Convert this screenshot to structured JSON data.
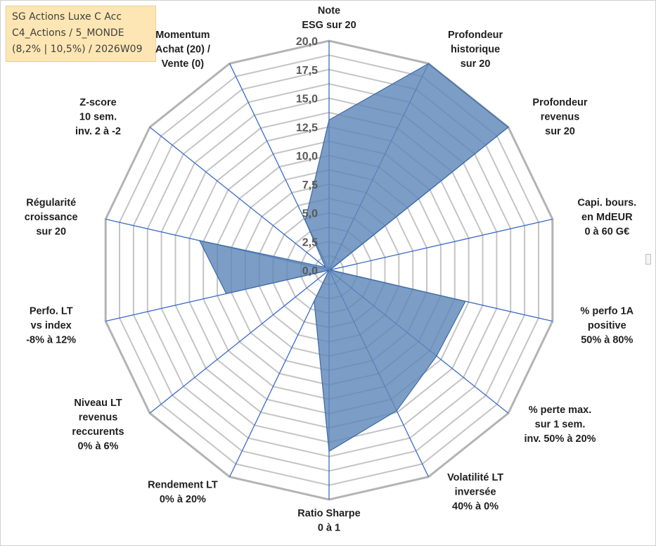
{
  "title_box": {
    "line1": "SG Actions Luxe C Acc",
    "line2": "C4_Actions / 5_MONDE",
    "line3": "(8,2% | 10,5%) / 2026W09"
  },
  "chart_data": {
    "type": "radar",
    "rmin": 0,
    "rmax": 20,
    "ticks": [
      "0,0",
      "2,5",
      "5,0",
      "7,5",
      "10,0",
      "12,5",
      "15,0",
      "17,5",
      "20,0"
    ],
    "tick_values": [
      0,
      2.5,
      5,
      7.5,
      10,
      12.5,
      15,
      17.5,
      20
    ],
    "grid_steps": 16,
    "axes": [
      {
        "label": [
          "Note",
          "ESG sur 20"
        ]
      },
      {
        "label": [
          "Profondeur",
          "historique",
          "sur 20"
        ]
      },
      {
        "label": [
          "Profondeur",
          "revenus",
          "sur 20"
        ]
      },
      {
        "label": [
          "Capi. bours.",
          "en MdEUR",
          "0 à 60 G€"
        ]
      },
      {
        "label": [
          "% perfo 1A",
          "positive",
          "50% à 80%"
        ]
      },
      {
        "label": [
          "% perte max.",
          "sur 1 sem.",
          "inv. 50% à 20%"
        ]
      },
      {
        "label": [
          "Volatilité LT",
          "inversée",
          "40% à 0%"
        ]
      },
      {
        "label": [
          "Ratio Sharpe",
          "0 à 1"
        ]
      },
      {
        "label": [
          "Rendement LT",
          "0% à 20%"
        ]
      },
      {
        "label": [
          "Niveau LT",
          "revenus",
          "reccurents",
          "0% à 6%"
        ]
      },
      {
        "label": [
          "Perfo. LT",
          "vs index",
          "-8% à 12%"
        ]
      },
      {
        "label": [
          "Régularité",
          "croissance",
          "sur 20"
        ]
      },
      {
        "label": [
          "Z-score",
          "10 sem.",
          "inv. 2 à -2"
        ]
      },
      {
        "label": [
          "Momentum",
          "Achat (20) /",
          "Vente (0)"
        ]
      }
    ],
    "series": [
      {
        "values": [
          13.1,
          20,
          20,
          0.1,
          12.2,
          12,
          13.6,
          15.8,
          3,
          0,
          9.2,
          11.6,
          0.4,
          4.8
        ]
      }
    ],
    "colors": {
      "fill": "#5f87b8",
      "stroke": "#3d6aa5",
      "axis": "#3a6bc7",
      "grid": "#c4c4c4",
      "outer": "#b3b3b3"
    }
  }
}
